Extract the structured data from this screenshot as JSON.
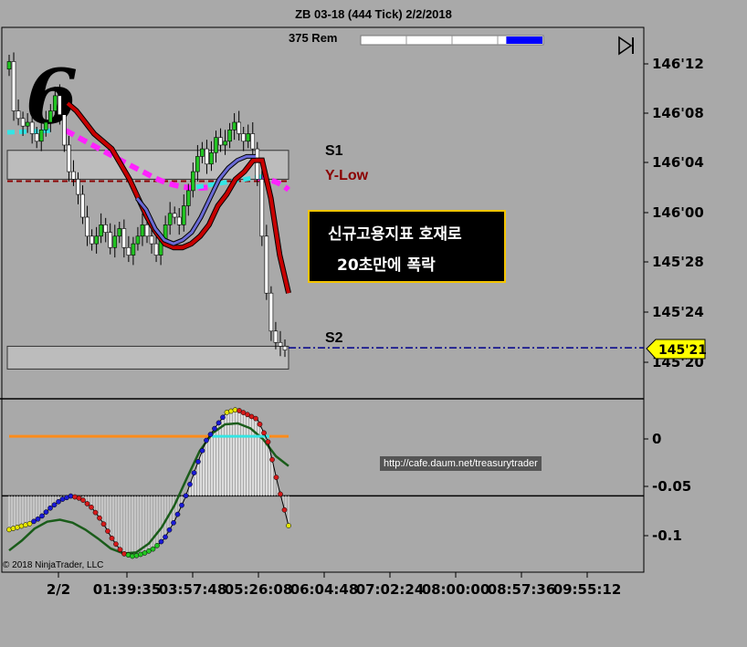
{
  "header": {
    "title": "ZB 03-18 (444 Tick)  2/2/2018",
    "ticks_remaining_label": "375 Rem",
    "progress_fraction": 0.2
  },
  "levels": {
    "s1_label": "S1",
    "ylow_label": "Y-Low",
    "s2_label": "S2"
  },
  "annotation": {
    "line1": "신규고용지표 호재로",
    "line2": "20초만에 폭락"
  },
  "current_price": "145'21",
  "footer": {
    "url": "http://cafe.daum.net/treasurytrader",
    "copyright": "© 2018 NinjaTrader, LLC"
  },
  "colors": {
    "background": "#a9a9a9",
    "up_bar": "#22c522",
    "down_bar": "#ffffff",
    "slow_ma": "#c80000",
    "fast_ma": "#6b6bd6",
    "magenta_band": "#ff22ff",
    "cyan_band": "#33e5e5",
    "ylow_line": "#8b0000",
    "last_price_line": "#00008b",
    "osc_zero_line": "#ff8c1a",
    "osc_signal": "#1a5c1a",
    "osc_dot_blue": "#1a1ad6",
    "osc_dot_red": "#d61a1a",
    "osc_dot_yellow": "#e5e500",
    "osc_dot_green": "#22c522",
    "annotation_border": "#f4c400",
    "price_tag": "#ffff00"
  },
  "chart_data": [
    {
      "type": "candlestick",
      "title": "ZB 03-18 (444 Tick)  2/2/2018",
      "y_tick_labels": [
        "146'12",
        "146'08",
        "146'04",
        "146'00",
        "145'28",
        "145'24",
        "145'20"
      ],
      "ylim": [
        145.5625,
        146.4375
      ],
      "x_tick_labels": [
        "2/2",
        "01:39:35",
        "03:57:48",
        "05:26:08",
        "06:04:48",
        "07:02:24",
        "08:00:00",
        "08:57:36",
        "09:55:12"
      ],
      "bar_count": 61,
      "closes": [
        146.41,
        146.28,
        146.26,
        146.24,
        146.25,
        146.22,
        146.2,
        146.23,
        146.25,
        146.28,
        146.32,
        146.27,
        146.19,
        146.12,
        146.1,
        146.06,
        146.0,
        145.95,
        145.93,
        145.95,
        145.98,
        145.96,
        145.92,
        145.95,
        145.97,
        145.92,
        145.9,
        145.93,
        145.95,
        145.98,
        145.95,
        145.93,
        145.9,
        145.94,
        145.98,
        146.01,
        146.0,
        145.98,
        146.03,
        146.07,
        146.12,
        146.16,
        146.18,
        146.14,
        146.17,
        146.21,
        146.19,
        146.2,
        146.23,
        146.25,
        146.22,
        146.2,
        146.22,
        146.18,
        146.1,
        145.95,
        145.8,
        145.7,
        145.67,
        145.66,
        145.65
      ],
      "zones": [
        {
          "name": "S1",
          "from": 146.1,
          "to": 146.176
        },
        {
          "name": "S2",
          "from": 145.6,
          "to": 145.66
        }
      ],
      "y_low": 146.095,
      "last_price": 145.656,
      "series": [
        {
          "name": "slow-ma",
          "values": [
            146.3,
            146.28,
            146.25,
            146.22,
            146.2,
            146.18,
            146.14,
            146.1,
            146.05,
            146.0,
            145.96,
            145.93,
            145.92,
            145.92,
            145.93,
            145.95,
            145.98,
            146.03,
            146.06,
            146.1,
            146.12,
            146.15,
            146.15,
            146.05,
            145.9,
            145.8
          ]
        },
        {
          "name": "fast-ma",
          "values": [
            146.05,
            146.02,
            145.97,
            145.94,
            145.93,
            145.94,
            145.96,
            146.0,
            146.05,
            146.1,
            146.13,
            146.15,
            146.16,
            146.16
          ]
        }
      ]
    },
    {
      "type": "line",
      "y_tick_labels": [
        "0",
        "-0.05",
        "-0.1"
      ],
      "ylim": [
        -0.135,
        0.035
      ],
      "zero_line": 0,
      "series": [
        {
          "name": "oscillator",
          "values": [
            -0.094,
            -0.091,
            -0.088,
            -0.082,
            -0.072,
            -0.064,
            -0.06,
            -0.063,
            -0.072,
            -0.086,
            -0.104,
            -0.118,
            -0.121,
            -0.118,
            -0.113,
            -0.103,
            -0.085,
            -0.062,
            -0.033,
            -0.005,
            0.01,
            0.024,
            0.027,
            0.022,
            0.017,
            -0.005,
            -0.05,
            -0.09
          ]
        },
        {
          "name": "signal",
          "values": [
            -0.115,
            -0.105,
            -0.093,
            -0.086,
            -0.084,
            -0.087,
            -0.094,
            -0.103,
            -0.113,
            -0.118,
            -0.117,
            -0.108,
            -0.092,
            -0.07,
            -0.042,
            -0.015,
            0.003,
            0.012,
            0.013,
            0.008,
            -0.003,
            -0.02,
            -0.03
          ]
        }
      ]
    }
  ]
}
